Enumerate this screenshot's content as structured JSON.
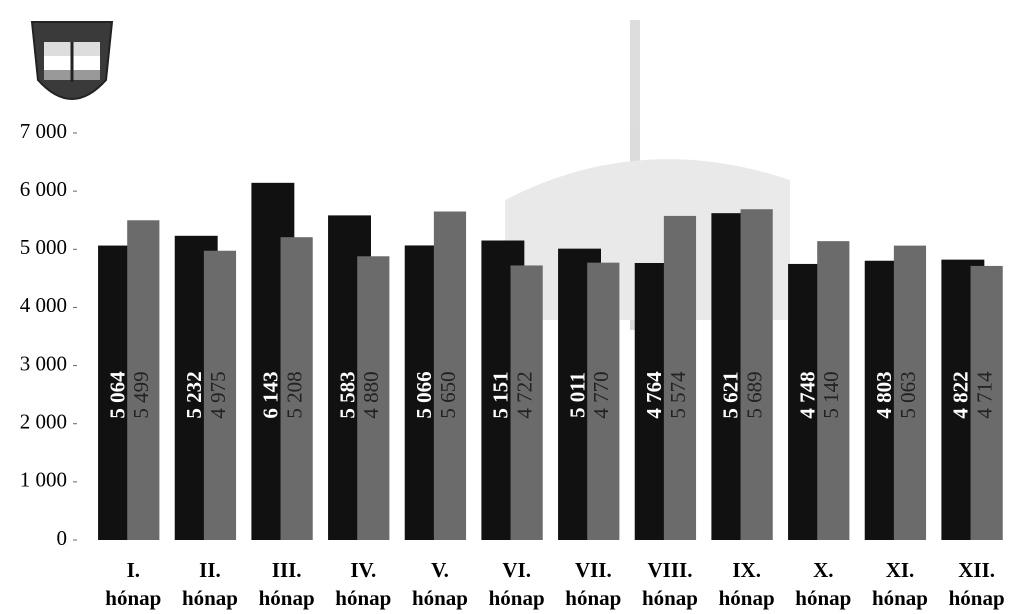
{
  "chart_data": {
    "type": "bar",
    "categories": [
      "I. hónap",
      "II. hónap",
      "III. hónap",
      "IV. hónap",
      "V. hónap",
      "VI. hónap",
      "VII. hónap",
      "VIII. hónap",
      "IX. hónap",
      "X. hónap",
      "XI. hónap",
      "XII. hónap"
    ],
    "series": [
      {
        "color": "#111111",
        "values": [
          5064,
          5232,
          6143,
          5583,
          5066,
          5151,
          5011,
          4764,
          5621,
          4748,
          4803,
          4822
        ],
        "value_labels": [
          "5 064",
          "5 232",
          "6 143",
          "5 583",
          "5 066",
          "5 151",
          "5 011",
          "4 764",
          "5 621",
          "4 748",
          "4 803",
          "4 822"
        ]
      },
      {
        "color": "#6b6b6b",
        "values": [
          5499,
          4975,
          5208,
          4880,
          5650,
          4722,
          4770,
          5574,
          5689,
          5140,
          5063,
          4714
        ],
        "value_labels": [
          "5 499",
          "4 975",
          "5 208",
          "4 880",
          "5 650",
          "4 722",
          "4 770",
          "5 574",
          "5 689",
          "5 140",
          "5 063",
          "4 714"
        ]
      }
    ],
    "ylim": [
      0,
      7000
    ],
    "yticks": [
      0,
      {
        "value": 1000,
        "label": "1 000"
      },
      {
        "value": 2000,
        "label": "2 000"
      },
      {
        "value": 3000,
        "label": "3 000"
      },
      {
        "value": 4000,
        "label": "4 000"
      },
      {
        "value": 5000,
        "label": "5 000"
      },
      {
        "value": 6000,
        "label": "6 000"
      },
      {
        "value": 7000,
        "label": "7 000"
      }
    ],
    "grid": false
  }
}
